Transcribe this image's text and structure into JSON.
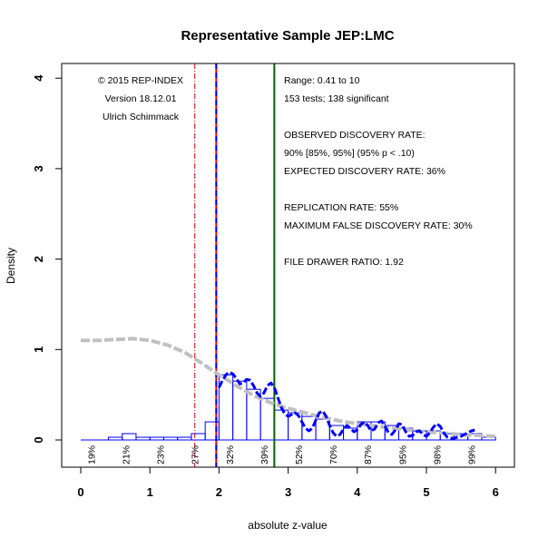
{
  "chart_data": {
    "type": "histogram",
    "title": "Representative Sample JEP:LMC",
    "xlabel": "absolute z-value",
    "ylabel": "Density",
    "xlim": [
      0,
      6
    ],
    "ylim": [
      0,
      4
    ],
    "x_ticks": [
      "0",
      "1",
      "2",
      "3",
      "4",
      "5",
      "6"
    ],
    "y_ticks": [
      "0",
      "1",
      "2",
      "3",
      "4"
    ],
    "colors": {
      "bars": "#0000ff",
      "fit_curve": "#0000ff",
      "density_curve": "#c0c0c0",
      "critical_line_red": "#ff0000",
      "critical_line_blue": "#0000ff",
      "selection_line": "#006400",
      "pct_line": "#cc0000"
    },
    "histogram": {
      "bin_width": 0.2,
      "bins": [
        {
          "x0": 0.0,
          "density": 0.0
        },
        {
          "x0": 0.2,
          "density": 0.0
        },
        {
          "x0": 0.4,
          "density": 0.03
        },
        {
          "x0": 0.6,
          "density": 0.07
        },
        {
          "x0": 0.8,
          "density": 0.03
        },
        {
          "x0": 1.0,
          "density": 0.03
        },
        {
          "x0": 1.2,
          "density": 0.03
        },
        {
          "x0": 1.4,
          "density": 0.03
        },
        {
          "x0": 1.6,
          "density": 0.07
        },
        {
          "x0": 1.8,
          "density": 0.2
        },
        {
          "x0": 2.0,
          "density": 0.72
        },
        {
          "x0": 2.2,
          "density": 0.65
        },
        {
          "x0": 2.4,
          "density": 0.56
        },
        {
          "x0": 2.6,
          "density": 0.46
        },
        {
          "x0": 2.8,
          "density": 0.33
        },
        {
          "x0": 3.0,
          "density": 0.3
        },
        {
          "x0": 3.2,
          "density": 0.26
        },
        {
          "x0": 3.4,
          "density": 0.23
        },
        {
          "x0": 3.6,
          "density": 0.16
        },
        {
          "x0": 3.8,
          "density": 0.13
        },
        {
          "x0": 4.0,
          "density": 0.2
        },
        {
          "x0": 4.2,
          "density": 0.2
        },
        {
          "x0": 4.4,
          "density": 0.16
        },
        {
          "x0": 4.6,
          "density": 0.13
        },
        {
          "x0": 4.8,
          "density": 0.1
        },
        {
          "x0": 5.0,
          "density": 0.1
        },
        {
          "x0": 5.2,
          "density": 0.07
        },
        {
          "x0": 5.4,
          "density": 0.07
        },
        {
          "x0": 5.6,
          "density": 0.07
        },
        {
          "x0": 5.8,
          "density": 0.03
        }
      ]
    },
    "density_curve": [
      {
        "x": 0.0,
        "y": 1.1
      },
      {
        "x": 0.25,
        "y": 1.1
      },
      {
        "x": 0.5,
        "y": 1.11
      },
      {
        "x": 0.75,
        "y": 1.12
      },
      {
        "x": 1.0,
        "y": 1.1
      },
      {
        "x": 1.25,
        "y": 1.05
      },
      {
        "x": 1.5,
        "y": 0.97
      },
      {
        "x": 1.75,
        "y": 0.85
      },
      {
        "x": 2.0,
        "y": 0.72
      },
      {
        "x": 2.25,
        "y": 0.6
      },
      {
        "x": 2.5,
        "y": 0.49
      },
      {
        "x": 2.75,
        "y": 0.41
      },
      {
        "x": 3.0,
        "y": 0.35
      },
      {
        "x": 3.25,
        "y": 0.3
      },
      {
        "x": 3.5,
        "y": 0.25
      },
      {
        "x": 3.75,
        "y": 0.21
      },
      {
        "x": 4.0,
        "y": 0.18
      },
      {
        "x": 4.5,
        "y": 0.13
      },
      {
        "x": 5.0,
        "y": 0.09
      },
      {
        "x": 5.5,
        "y": 0.06
      },
      {
        "x": 6.0,
        "y": 0.04
      }
    ],
    "fit_curve": [
      {
        "x": 2.0,
        "y": 0.58
      },
      {
        "x": 2.05,
        "y": 0.66
      },
      {
        "x": 2.1,
        "y": 0.72
      },
      {
        "x": 2.15,
        "y": 0.75
      },
      {
        "x": 2.2,
        "y": 0.73
      },
      {
        "x": 2.25,
        "y": 0.68
      },
      {
        "x": 2.3,
        "y": 0.62
      },
      {
        "x": 2.35,
        "y": 0.63
      },
      {
        "x": 2.4,
        "y": 0.67
      },
      {
        "x": 2.45,
        "y": 0.66
      },
      {
        "x": 2.5,
        "y": 0.6
      },
      {
        "x": 2.55,
        "y": 0.52
      },
      {
        "x": 2.6,
        "y": 0.48
      },
      {
        "x": 2.65,
        "y": 0.52
      },
      {
        "x": 2.7,
        "y": 0.6
      },
      {
        "x": 2.75,
        "y": 0.63
      },
      {
        "x": 2.8,
        "y": 0.58
      },
      {
        "x": 2.85,
        "y": 0.47
      },
      {
        "x": 2.9,
        "y": 0.36
      },
      {
        "x": 2.95,
        "y": 0.29
      },
      {
        "x": 3.0,
        "y": 0.26
      },
      {
        "x": 3.05,
        "y": 0.28
      },
      {
        "x": 3.1,
        "y": 0.3
      },
      {
        "x": 3.15,
        "y": 0.27
      },
      {
        "x": 3.2,
        "y": 0.2
      },
      {
        "x": 3.25,
        "y": 0.13
      },
      {
        "x": 3.3,
        "y": 0.1
      },
      {
        "x": 3.35,
        "y": 0.13
      },
      {
        "x": 3.4,
        "y": 0.22
      },
      {
        "x": 3.45,
        "y": 0.3
      },
      {
        "x": 3.5,
        "y": 0.32
      },
      {
        "x": 3.55,
        "y": 0.26
      },
      {
        "x": 3.6,
        "y": 0.16
      },
      {
        "x": 3.65,
        "y": 0.08
      },
      {
        "x": 3.7,
        "y": 0.04
      },
      {
        "x": 3.75,
        "y": 0.06
      },
      {
        "x": 3.8,
        "y": 0.12
      },
      {
        "x": 3.85,
        "y": 0.16
      },
      {
        "x": 3.9,
        "y": 0.13
      },
      {
        "x": 3.95,
        "y": 0.09
      },
      {
        "x": 4.0,
        "y": 0.11
      },
      {
        "x": 4.05,
        "y": 0.17
      },
      {
        "x": 4.1,
        "y": 0.2
      },
      {
        "x": 4.15,
        "y": 0.16
      },
      {
        "x": 4.2,
        "y": 0.1
      },
      {
        "x": 4.25,
        "y": 0.12
      },
      {
        "x": 4.3,
        "y": 0.19
      },
      {
        "x": 4.35,
        "y": 0.21
      },
      {
        "x": 4.4,
        "y": 0.15
      },
      {
        "x": 4.45,
        "y": 0.08
      },
      {
        "x": 4.5,
        "y": 0.06
      },
      {
        "x": 4.55,
        "y": 0.11
      },
      {
        "x": 4.6,
        "y": 0.18
      },
      {
        "x": 4.65,
        "y": 0.17
      },
      {
        "x": 4.7,
        "y": 0.09
      },
      {
        "x": 4.75,
        "y": 0.04
      },
      {
        "x": 4.8,
        "y": 0.05
      },
      {
        "x": 4.85,
        "y": 0.09
      },
      {
        "x": 4.9,
        "y": 0.1
      },
      {
        "x": 4.95,
        "y": 0.06
      },
      {
        "x": 5.0,
        "y": 0.04
      },
      {
        "x": 5.05,
        "y": 0.08
      },
      {
        "x": 5.1,
        "y": 0.14
      },
      {
        "x": 5.15,
        "y": 0.18
      },
      {
        "x": 5.2,
        "y": 0.15
      },
      {
        "x": 5.25,
        "y": 0.08
      },
      {
        "x": 5.3,
        "y": 0.03
      },
      {
        "x": 5.35,
        "y": 0.02
      },
      {
        "x": 5.4,
        "y": 0.02
      },
      {
        "x": 5.45,
        "y": 0.03
      },
      {
        "x": 5.5,
        "y": 0.04
      },
      {
        "x": 5.55,
        "y": 0.06
      },
      {
        "x": 5.6,
        "y": 0.08
      },
      {
        "x": 5.65,
        "y": 0.1
      },
      {
        "x": 5.7,
        "y": 0.11
      }
    ],
    "vertical_lines": [
      {
        "x": 1.65,
        "color": "#cc0000",
        "style": "dotdash"
      },
      {
        "x": 1.96,
        "color": "#ff0000",
        "style": "solid"
      },
      {
        "x": 1.96,
        "color": "#0000ff",
        "style": "dashed"
      },
      {
        "x": 2.8,
        "color": "#006400",
        "style": "solid"
      }
    ],
    "percent_labels": [
      {
        "x": 0.15,
        "text": "19%"
      },
      {
        "x": 0.65,
        "text": "21%"
      },
      {
        "x": 1.15,
        "text": "23%"
      },
      {
        "x": 1.65,
        "text": "27%"
      },
      {
        "x": 2.15,
        "text": "32%"
      },
      {
        "x": 2.65,
        "text": "39%"
      },
      {
        "x": 3.15,
        "text": "52%"
      },
      {
        "x": 3.65,
        "text": "70%"
      },
      {
        "x": 4.15,
        "text": "87%"
      },
      {
        "x": 4.65,
        "text": "95%"
      },
      {
        "x": 5.15,
        "text": "98%"
      },
      {
        "x": 5.65,
        "text": "99%"
      }
    ]
  },
  "annotations": {
    "left": [
      "© 2015 REP-INDEX",
      "Version 18.12.01",
      "Ulrich Schimmack"
    ],
    "right": [
      "Range: 0.41 to 10",
      "153 tests; 138 significant",
      "",
      "OBSERVED DISCOVERY RATE:",
      "90%  [85%, 95%]    (95% p < .10)",
      "EXPECTED DISCOVERY RATE: 36%",
      "",
      "REPLICATION RATE: 55%",
      "MAXIMUM FALSE DISCOVERY RATE: 30%",
      "",
      "FILE DRAWER RATIO: 1.92"
    ]
  }
}
